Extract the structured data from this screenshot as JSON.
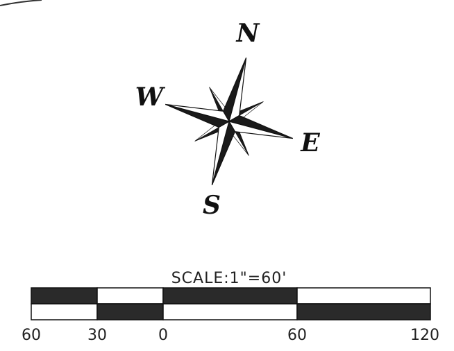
{
  "compass": {
    "north": "N",
    "west": "W",
    "east": "E",
    "south": "S"
  },
  "scale": {
    "title": "SCALE:1\"=60'",
    "labels": [
      "60",
      "30",
      "0",
      "60",
      "120"
    ]
  }
}
